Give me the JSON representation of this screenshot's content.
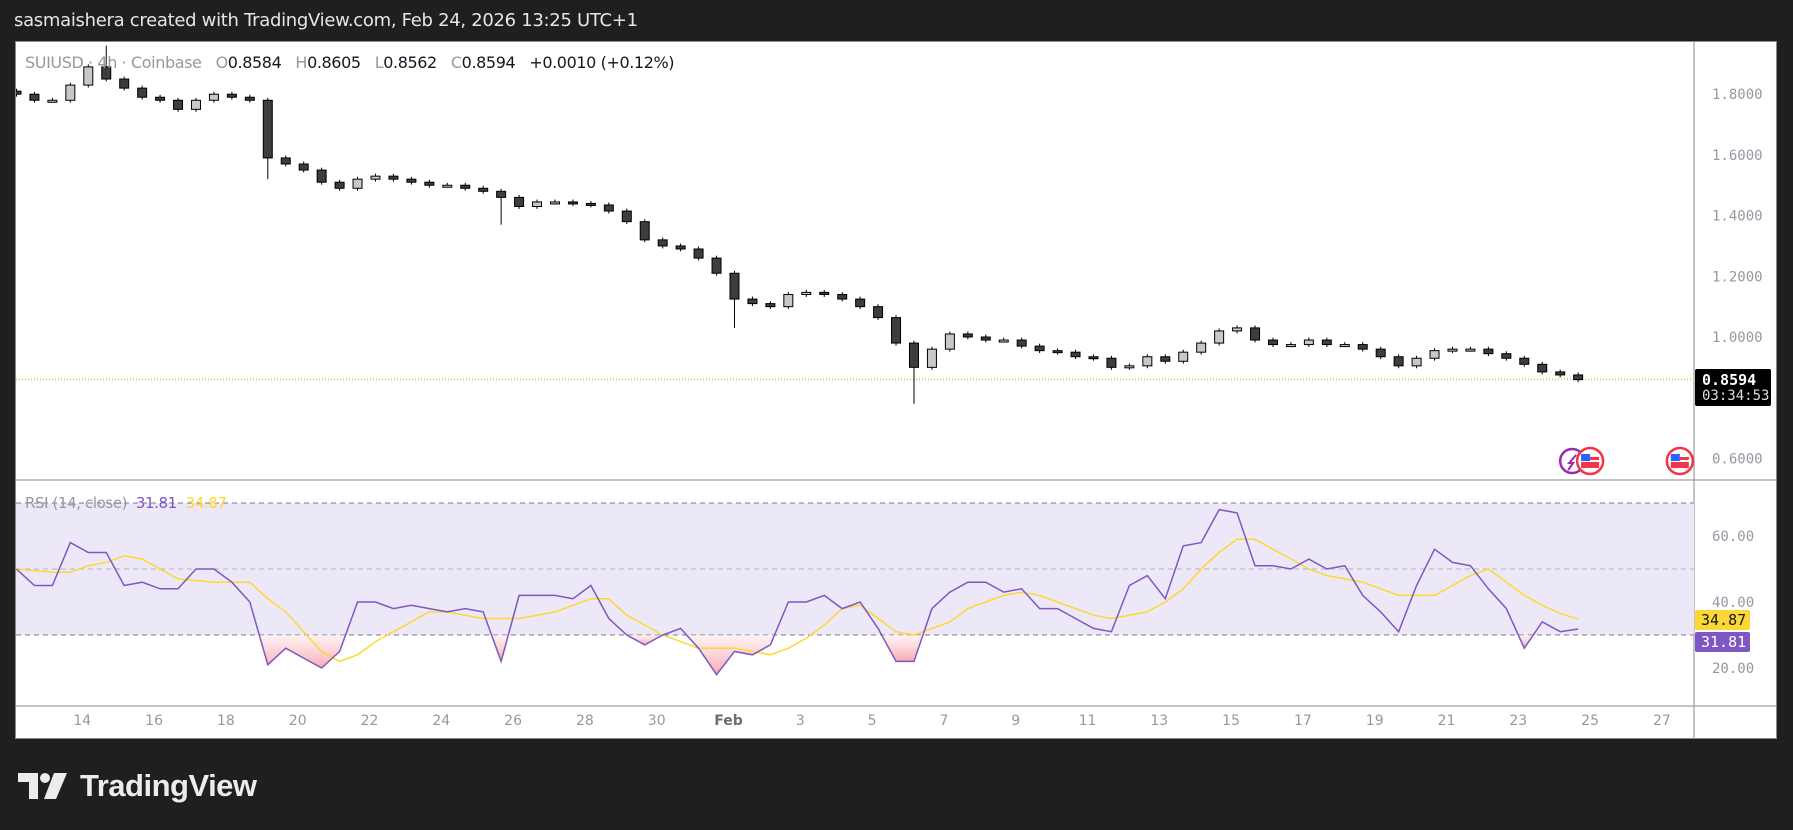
{
  "header": {
    "title": "sasmaishera created with TradingView.com, Feb 24, 2026 13:25 UTC+1"
  },
  "legend": {
    "symbol": "SUIUSD · 4h · Coinbase",
    "o_label": "O",
    "o": "0.8584",
    "h_label": "H",
    "h": "0.8605",
    "l_label": "L",
    "l": "0.8562",
    "c_label": "C",
    "c": "0.8594",
    "change": "+0.0010 (+0.12%)"
  },
  "price_label": {
    "value": "0.8594",
    "countdown": "03:34:53"
  },
  "rsi_legend": {
    "name": "RSI (14, close)",
    "rsi": "31.81",
    "ma": "34.87"
  },
  "rsi_labels": {
    "rsi": "31.81",
    "ma": "34.87"
  },
  "logo": {
    "text": "TradingView"
  },
  "colors": {
    "up_fill": "#c8c8c8",
    "down_fill": "#3d3d3d",
    "candle_border": "#000000",
    "rsi": "#7e57c2",
    "rsi_ma": "#fdd835",
    "rsi_band": "#ede8f7",
    "oversold_fill": "#f7b9bf",
    "price_line": "#f2e600"
  },
  "events": [
    {
      "icon": "dividends-lightning-icon",
      "date": "2026-02-24T12:00"
    },
    {
      "icon": "us-flag-economic-event-icon",
      "date": "2026-02-25T00:00"
    },
    {
      "icon": "us-flag-economic-event-icon",
      "date": "2026-02-27T12:00"
    }
  ],
  "chart_data": [
    {
      "type": "candlestick",
      "series_name": "SUIUSD",
      "start": "2026-01-12T04:00",
      "interval_hours": 12,
      "close": [
        1.8,
        1.78,
        1.78,
        1.83,
        1.89,
        1.85,
        1.82,
        1.79,
        1.78,
        1.75,
        1.78,
        1.8,
        1.79,
        1.78,
        1.59,
        1.57,
        1.55,
        1.51,
        1.49,
        1.52,
        1.53,
        1.52,
        1.51,
        1.5,
        1.5,
        1.49,
        1.48,
        1.46,
        1.43,
        1.445,
        1.445,
        1.44,
        1.435,
        1.415,
        1.38,
        1.32,
        1.3,
        1.29,
        1.26,
        1.21,
        1.125,
        1.11,
        1.1,
        1.14,
        1.147,
        1.14,
        1.125,
        1.1,
        1.064,
        0.98,
        0.9,
        0.96,
        1.01,
        1.0,
        0.99,
        0.99,
        0.97,
        0.955,
        0.95,
        0.935,
        0.93,
        0.9,
        0.905,
        0.935,
        0.92,
        0.95,
        0.98,
        1.02,
        1.03,
        0.99,
        0.975,
        0.975,
        0.99,
        0.975,
        0.975,
        0.96,
        0.935,
        0.905,
        0.93,
        0.955,
        0.96,
        0.96,
        0.945,
        0.93,
        0.91,
        0.885,
        0.875,
        0.8594
      ],
      "wick_extremes": [
        {
          "date": "2026-01-14T16:00",
          "high": 1.96
        },
        {
          "date": "2026-01-19T04:00",
          "low": 1.52
        },
        {
          "date": "2026-01-25T16:00",
          "low": 1.37
        },
        {
          "date": "2026-02-01T04:00",
          "low": 1.03
        },
        {
          "date": "2026-02-06T04:00",
          "low": 0.78
        }
      ],
      "last_price": 0.8594,
      "y_axis": {
        "ticks": [
          1.8,
          1.6,
          1.4,
          1.2,
          1.0,
          0.6
        ],
        "tick_labels": [
          "1.8000",
          "1.6000",
          "1.4000",
          "1.2000",
          "1.0000",
          "0.6000"
        ],
        "range": [
          0.56,
          1.98
        ]
      },
      "grid": false
    },
    {
      "type": "line",
      "title": "RSI (14, close)",
      "start": "2026-01-12T04:00",
      "interval_hours": 12,
      "series": [
        {
          "name": "RSI",
          "values": [
            50,
            45,
            45,
            58,
            55,
            55,
            45,
            46,
            44,
            44,
            50,
            50,
            46,
            40,
            21,
            26,
            23,
            20,
            25,
            40,
            40,
            38,
            39,
            38,
            37,
            38,
            37,
            22,
            42,
            42,
            42,
            41,
            45,
            35,
            30,
            27,
            30,
            32,
            26,
            18,
            25,
            24,
            27,
            40,
            40,
            42,
            38,
            40,
            32,
            22,
            22,
            38,
            43,
            46,
            46,
            43,
            44,
            38,
            38,
            35,
            32,
            31,
            45,
            48,
            41,
            57,
            58,
            68,
            67,
            51,
            51,
            50,
            53,
            50,
            51,
            42,
            37,
            31,
            45,
            56,
            52,
            51,
            44,
            38,
            26,
            34,
            31,
            31.81
          ]
        },
        {
          "name": "RSI-based MA",
          "values": [
            50,
            49.5,
            49,
            49,
            51,
            52,
            54,
            53,
            50,
            47,
            46.5,
            46,
            46,
            46,
            41,
            37,
            31,
            25,
            22,
            24,
            28,
            31,
            34,
            37,
            37,
            36,
            35,
            35,
            35,
            36,
            37,
            39,
            41,
            41,
            36,
            33,
            30,
            28,
            26,
            26,
            26,
            25,
            24,
            26,
            29,
            33,
            38,
            39,
            35,
            31,
            30,
            32,
            34,
            38,
            40,
            42,
            43,
            42,
            40,
            38,
            36,
            35,
            36,
            37,
            40,
            44,
            50,
            55,
            59,
            59,
            56,
            53,
            50,
            48,
            47,
            46,
            44,
            42,
            42,
            42,
            45,
            48,
            50,
            46,
            42,
            39,
            36.5,
            34.87
          ]
        }
      ],
      "bands": {
        "upper": 70,
        "middle": 50,
        "lower": 30
      },
      "y_axis": {
        "ticks": [
          60,
          40,
          20
        ],
        "tick_labels": [
          "60.00",
          "40.00",
          "20.00"
        ]
      }
    }
  ],
  "x_axis": {
    "ticks": [
      {
        "label": "14",
        "date": "2026-01-14"
      },
      {
        "label": "16",
        "date": "2026-01-16"
      },
      {
        "label": "18",
        "date": "2026-01-18"
      },
      {
        "label": "20",
        "date": "2026-01-20"
      },
      {
        "label": "22",
        "date": "2026-01-22"
      },
      {
        "label": "24",
        "date": "2026-01-24"
      },
      {
        "label": "26",
        "date": "2026-01-26"
      },
      {
        "label": "28",
        "date": "2026-01-28"
      },
      {
        "label": "30",
        "date": "2026-01-30"
      },
      {
        "label": "Feb",
        "date": "2026-02-01",
        "bold": true
      },
      {
        "label": "3",
        "date": "2026-02-03"
      },
      {
        "label": "5",
        "date": "2026-02-05"
      },
      {
        "label": "7",
        "date": "2026-02-07"
      },
      {
        "label": "9",
        "date": "2026-02-09"
      },
      {
        "label": "11",
        "date": "2026-02-11"
      },
      {
        "label": "13",
        "date": "2026-02-13"
      },
      {
        "label": "15",
        "date": "2026-02-15"
      },
      {
        "label": "17",
        "date": "2026-02-17"
      },
      {
        "label": "19",
        "date": "2026-02-19"
      },
      {
        "label": "21",
        "date": "2026-02-21"
      },
      {
        "label": "23",
        "date": "2026-02-23"
      },
      {
        "label": "25",
        "date": "2026-02-25"
      },
      {
        "label": "27",
        "date": "2026-02-27"
      }
    ]
  }
}
